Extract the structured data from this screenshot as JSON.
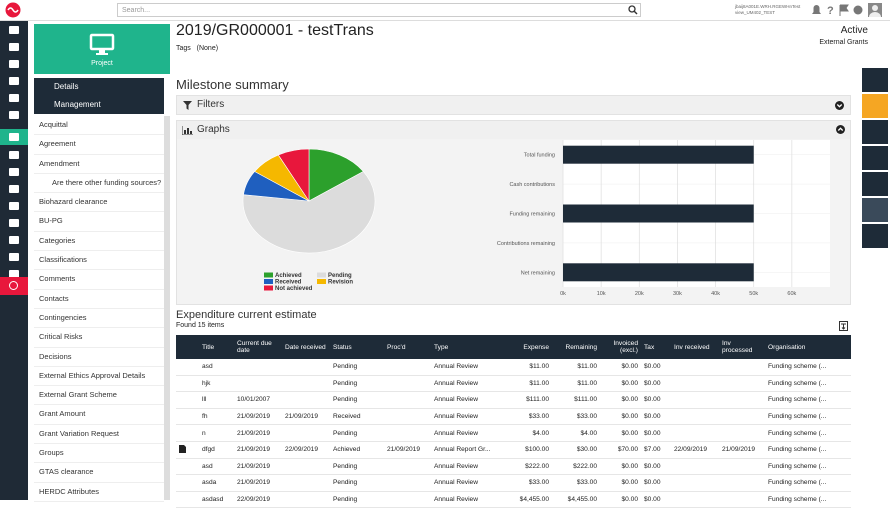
{
  "topbar": {
    "search_placeholder": "Search...",
    "user_lines": [
      "jbaij8A001E.WRH.RGEWHnTest",
      "view_UM402_TEST"
    ]
  },
  "project_tile": "Project",
  "nav": {
    "tabs": [
      "Details",
      "Management"
    ],
    "items": [
      "Acquittal",
      "Agreement",
      "Amendment",
      "Are there other funding sources?",
      "Biohazard clearance",
      "BU-PG",
      "Categories",
      "Classifications",
      "Comments",
      "Contacts",
      "Contingencies",
      "Critical Risks",
      "Decisions",
      "External Ethics Approval Details",
      "External Grant Scheme",
      "Grant Amount",
      "Grant Variation Request",
      "Groups",
      "GTAS clearance",
      "HERDC Attributes"
    ]
  },
  "header": {
    "title": "2019/GR000001 - testTrans",
    "tags_label": "Tags",
    "tags_value": "(None)",
    "status": "Active",
    "category": "External Grants"
  },
  "section_title": "Milestone summary",
  "filters": "Filters",
  "graphs": "Graphs",
  "chart_data": [
    {
      "type": "pie",
      "categories": [
        "Achieved",
        "Pending",
        "Received",
        "Revision",
        "Not achieved"
      ],
      "values": [
        2,
        8,
        1,
        1,
        1
      ],
      "colors": [
        "#2ca02c",
        "#dcdcdc",
        "#1f5fbf",
        "#f5b800",
        "#e8173c"
      ]
    },
    {
      "type": "bar",
      "orientation": "horizontal",
      "categories": [
        "Total funding",
        "Cash contributions",
        "Funding remaining",
        "Contributions remaining",
        "Net remaining"
      ],
      "values": [
        50000,
        0,
        50000,
        0,
        50000
      ],
      "color": "#1e2b38",
      "xlim": [
        0,
        70000
      ],
      "xticks": [
        {
          "value": 0,
          "label": "0k"
        },
        {
          "value": 10000,
          "label": "10k"
        },
        {
          "value": 20000,
          "label": "20k"
        },
        {
          "value": 30000,
          "label": "30k"
        },
        {
          "value": 40000,
          "label": "40k"
        },
        {
          "value": 50000,
          "label": "50k"
        },
        {
          "value": 60000,
          "label": "60k"
        }
      ],
      "grid": true
    }
  ],
  "expenditure": {
    "title": "Expenditure current estimate",
    "found": "Found 15 items",
    "columns": [
      "Title",
      "Current due date",
      "Date received",
      "Status",
      "Proc'd",
      "Type",
      "Expense",
      "Remaining",
      "Invoiced (excl.)",
      "Tax",
      "Inv received",
      "Inv processed",
      "Organisation"
    ],
    "rows": [
      [
        "asd",
        null,
        null,
        "Pending",
        null,
        "Annual Review",
        "$11.00",
        "$11.00",
        "$0.00",
        "$0.00",
        null,
        null,
        "Funding scheme (..."
      ],
      [
        "hjk",
        null,
        null,
        "Pending",
        null,
        "Annual Review",
        "$11.00",
        "$11.00",
        "$0.00",
        "$0.00",
        null,
        null,
        "Funding scheme (..."
      ],
      [
        "lll",
        "10/01/2007",
        null,
        "Pending",
        null,
        "Annual Review",
        "$111.00",
        "$111.00",
        "$0.00",
        "$0.00",
        null,
        null,
        "Funding scheme (..."
      ],
      [
        "fh",
        "21/09/2019",
        "21/09/2019",
        "Received",
        null,
        "Annual Review",
        "$33.00",
        "$33.00",
        "$0.00",
        "$0.00",
        null,
        null,
        "Funding scheme (..."
      ],
      [
        "n",
        "21/09/2019",
        null,
        "Pending",
        null,
        "Annual Review",
        "$4.00",
        "$4.00",
        "$0.00",
        "$0.00",
        null,
        null,
        "Funding scheme (..."
      ],
      [
        "dfgd",
        "21/09/2019",
        "22/09/2019",
        "Achieved",
        "21/09/2019",
        "Annual Report Gr...",
        "$100.00",
        "$30.00",
        "$70.00",
        "$7.00",
        "22/09/2019",
        "21/09/2019",
        "Funding scheme (..."
      ],
      [
        "asd",
        "21/09/2019",
        null,
        "Pending",
        null,
        "Annual Review",
        "$222.00",
        "$222.00",
        "$0.00",
        "$0.00",
        null,
        null,
        "Funding scheme (..."
      ],
      [
        "asda",
        "21/09/2019",
        null,
        "Pending",
        null,
        "Annual Review",
        "$33.00",
        "$33.00",
        "$0.00",
        "$0.00",
        null,
        null,
        "Funding scheme (..."
      ],
      [
        "asdasd",
        "22/09/2019",
        null,
        "Pending",
        null,
        "Annual Review",
        "$4,455.00",
        "$4,455.00",
        "$0.00",
        "$0.00",
        null,
        null,
        "Funding scheme (..."
      ]
    ]
  }
}
